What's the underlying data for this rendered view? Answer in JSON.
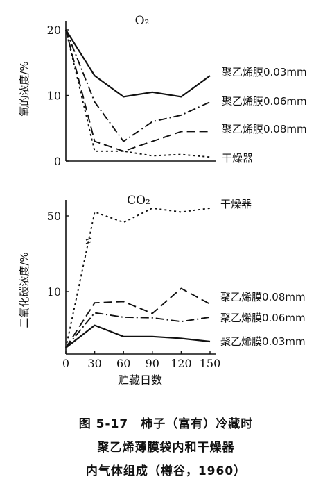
{
  "chart_data": [
    {
      "type": "line",
      "title": "O₂",
      "ylabel": "氧的浓度/%",
      "ylim": [
        0,
        21
      ],
      "xlim": [
        0,
        150
      ],
      "yticks": [
        "0",
        "10",
        "20"
      ],
      "series": [
        {
          "name": "聚乙烯膜0.03mm",
          "style": "solid",
          "x": [
            0,
            30,
            60,
            90,
            120,
            150
          ],
          "y": [
            20,
            13,
            9.8,
            10.5,
            9.8,
            13
          ]
        },
        {
          "name": "聚乙烯膜0.06mm",
          "style": "dashdot",
          "x": [
            0,
            30,
            45,
            60,
            90,
            120,
            150
          ],
          "y": [
            20,
            9,
            6,
            3,
            6,
            7,
            9
          ]
        },
        {
          "name": "聚乙烯膜0.08mm",
          "style": "dashed",
          "x": [
            0,
            30,
            60,
            90,
            120,
            150
          ],
          "y": [
            20,
            3,
            1.5,
            3,
            4.5,
            4.5
          ]
        },
        {
          "name": "干燥器",
          "style": "dotted",
          "x": [
            0,
            30,
            60,
            90,
            120,
            150
          ],
          "y": [
            20,
            1.5,
            1.5,
            0.8,
            1,
            0.6
          ]
        }
      ]
    },
    {
      "type": "line",
      "title": "CO₂",
      "ylabel": "二氧化碳浓度/%",
      "xlabel": "贮藏日数",
      "xlim": [
        0,
        150
      ],
      "xticks": [
        "0",
        "30",
        "60",
        "90",
        "120",
        "150"
      ],
      "yticks": [
        "10",
        "50"
      ],
      "axis_break": "y",
      "series": [
        {
          "name": "干燥器",
          "style": "dotted",
          "x": [
            0,
            30,
            60,
            90,
            120,
            150
          ],
          "y": [
            1,
            53,
            45,
            56,
            53,
            56
          ]
        },
        {
          "name": "聚乙烯膜0.08mm",
          "style": "dashed",
          "x": [
            0,
            30,
            60,
            90,
            120,
            150
          ],
          "y": [
            1,
            8.2,
            8.4,
            6.5,
            10.5,
            8
          ]
        },
        {
          "name": "聚乙烯膜0.06mm",
          "style": "dashdot",
          "x": [
            0,
            30,
            60,
            90,
            120,
            150
          ],
          "y": [
            1,
            6.6,
            5.9,
            5.8,
            5.2,
            5.9
          ]
        },
        {
          "name": "聚乙烯膜0.03mm",
          "style": "solid",
          "x": [
            0,
            30,
            60,
            90,
            120,
            150
          ],
          "y": [
            1,
            4.6,
            2.8,
            2.8,
            2.5,
            2
          ]
        }
      ]
    }
  ],
  "caption": {
    "line1": "图 5-17　柿子（富有）冷藏时",
    "line2": "聚乙烯薄膜袋内和干燥器",
    "line3": "内气体组成（樽谷，1960）"
  }
}
